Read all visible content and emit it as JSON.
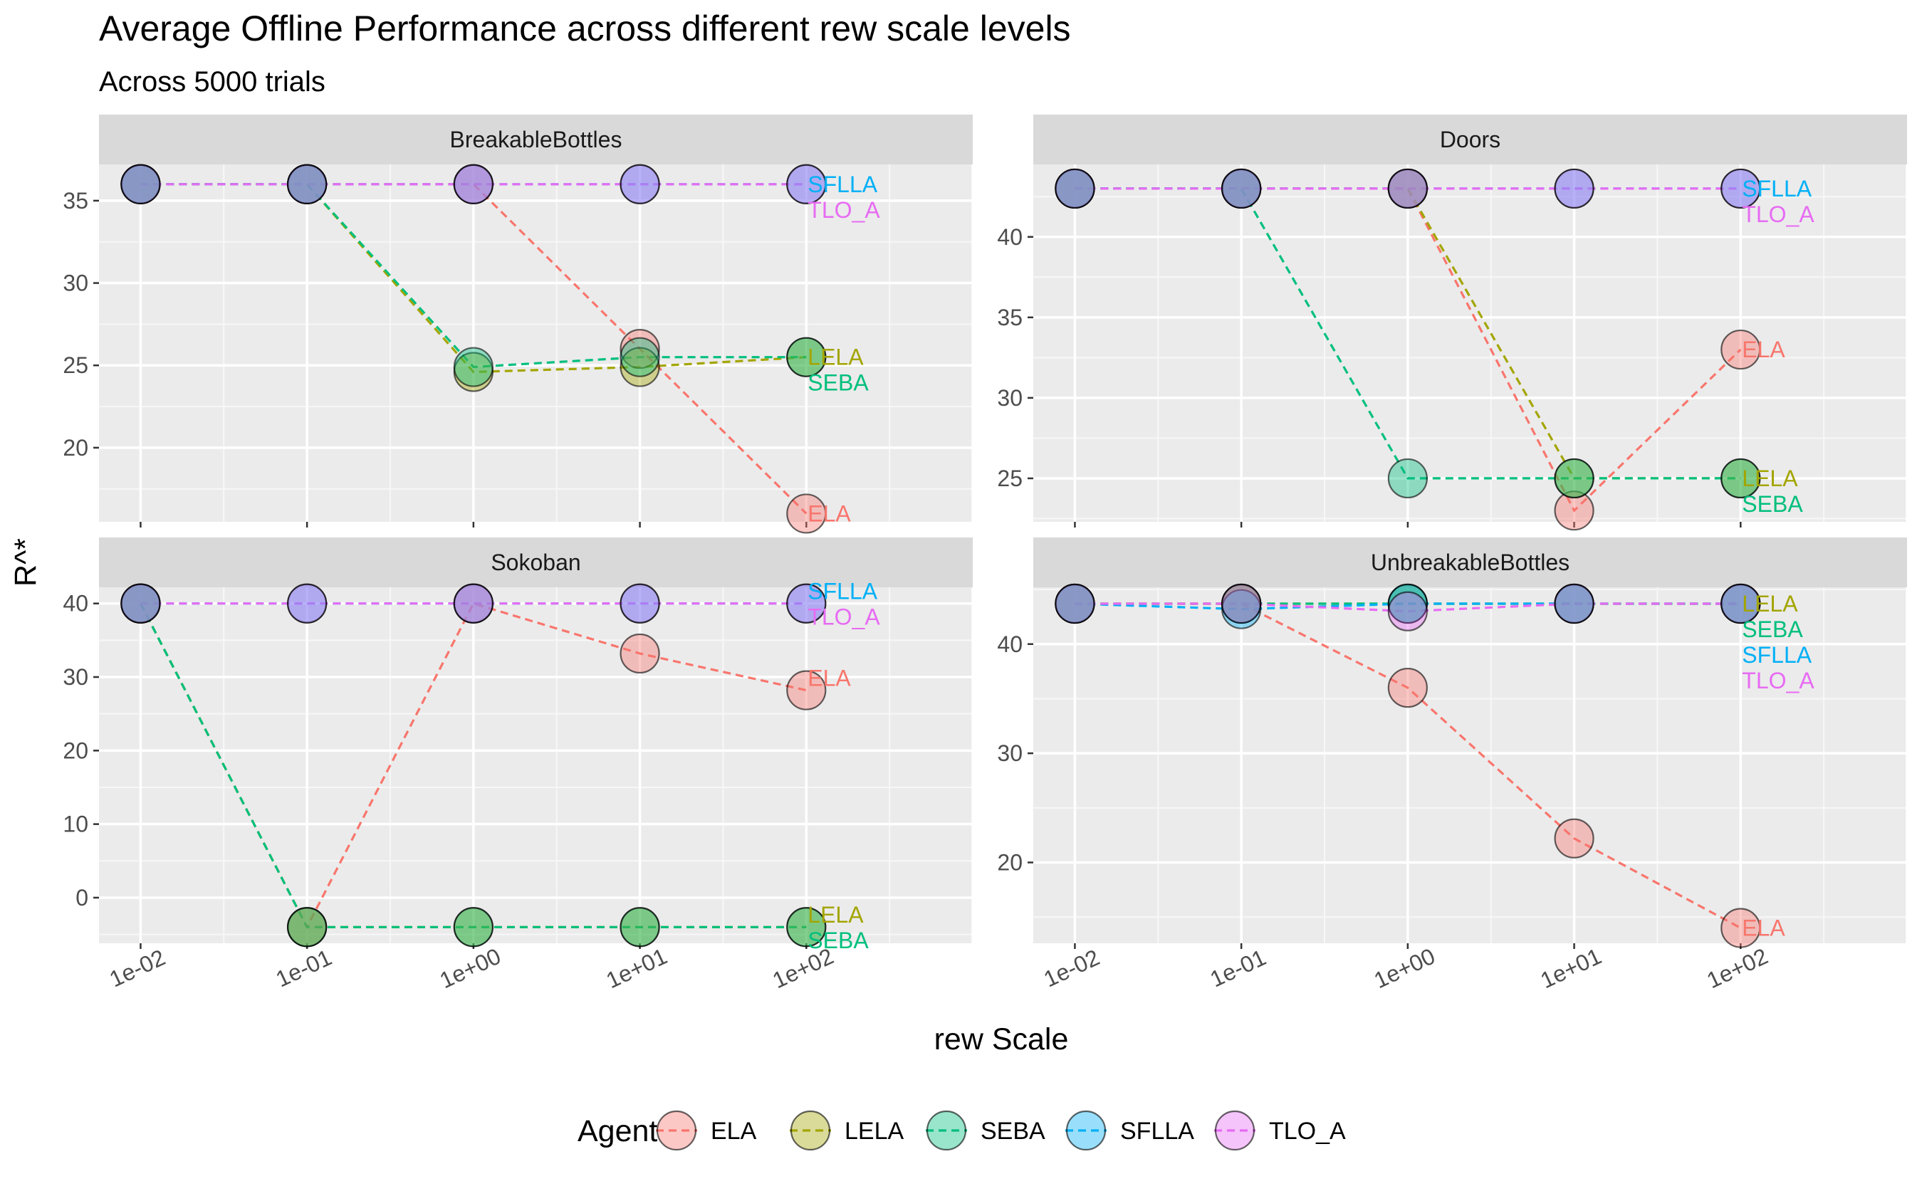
{
  "chart_data": {
    "type": "line",
    "title": "Average Offline Performance across different rew scale levels",
    "subtitle": "Across 5000 trials",
    "xlabel": "rew Scale",
    "ylabel": "R^*",
    "x_scale": "log10",
    "x_ticks": [
      "1e-02",
      "1e-01",
      "1e+00",
      "1e+01",
      "1e+02"
    ],
    "x": [
      0.01,
      0.1,
      1,
      10,
      100
    ],
    "grid": true,
    "legend": {
      "title": "Agent",
      "position": "bottom",
      "entries": [
        "ELA",
        "LELA",
        "SEBA",
        "SFLLA",
        "TLO_A"
      ]
    },
    "colors": {
      "ELA": "#F8766D",
      "LELA": "#A3A500",
      "SEBA": "#00BF7D",
      "SFLLA": "#00B0F6",
      "TLO_A": "#E76BF3"
    },
    "panels": [
      {
        "name": "BreakableBottles",
        "ylim": [
          15.5,
          37.2
        ],
        "y_ticks": [
          20,
          25,
          30,
          35
        ],
        "series": [
          {
            "name": "ELA",
            "values": [
              36,
              36,
              36,
              26,
              16
            ]
          },
          {
            "name": "LELA",
            "values": [
              36,
              36,
              24.6,
              24.9,
              25.5
            ]
          },
          {
            "name": "SEBA",
            "values": [
              36,
              36,
              24.9,
              25.5,
              25.5
            ]
          },
          {
            "name": "SFLLA",
            "values": [
              36,
              36,
              36,
              36,
              36
            ]
          },
          {
            "name": "TLO_A",
            "values": [
              36,
              36,
              36,
              36,
              36
            ]
          }
        ]
      },
      {
        "name": "Doors",
        "ylim": [
          22.3,
          44.5
        ],
        "y_ticks": [
          25,
          30,
          35,
          40
        ],
        "series": [
          {
            "name": "ELA",
            "values": [
              43,
              43,
              43,
              23,
              33
            ]
          },
          {
            "name": "LELA",
            "values": [
              43,
              43,
              43,
              25,
              25
            ]
          },
          {
            "name": "SEBA",
            "values": [
              43,
              43,
              25,
              25,
              25
            ]
          },
          {
            "name": "SFLLA",
            "values": [
              43,
              43,
              43,
              43,
              43
            ]
          },
          {
            "name": "TLO_A",
            "values": [
              43,
              43,
              43,
              43,
              43
            ]
          }
        ]
      },
      {
        "name": "Sokoban",
        "ylim": [
          -6.2,
          42.2
        ],
        "y_ticks": [
          0,
          10,
          20,
          30,
          40
        ],
        "series": [
          {
            "name": "ELA",
            "values": [
              40,
              -4,
              40,
              33.2,
              28.2
            ]
          },
          {
            "name": "LELA",
            "values": [
              40,
              -4,
              -4,
              -4,
              -4
            ]
          },
          {
            "name": "SEBA",
            "values": [
              40,
              -4,
              -4,
              -4,
              -4
            ]
          },
          {
            "name": "SFLLA",
            "values": [
              40,
              40,
              40,
              40,
              40
            ]
          },
          {
            "name": "TLO_A",
            "values": [
              40,
              40,
              40,
              40,
              40
            ]
          }
        ]
      },
      {
        "name": "UnbreakableBottles",
        "ylim": [
          12.6,
          45.2
        ],
        "y_ticks": [
          20,
          30,
          40
        ],
        "series": [
          {
            "name": "ELA",
            "values": [
              43.7,
              43.7,
              36,
              22.2,
              14
            ]
          },
          {
            "name": "LELA",
            "values": [
              43.7,
              43.7,
              43.7,
              43.7,
              43.7
            ]
          },
          {
            "name": "SEBA",
            "values": [
              43.7,
              43.7,
              43.7,
              43.7,
              43.7
            ]
          },
          {
            "name": "SFLLA",
            "values": [
              43.7,
              43.2,
              43.7,
              43.7,
              43.7
            ]
          },
          {
            "name": "TLO_A",
            "values": [
              43.7,
              43.7,
              43,
              43.7,
              43.7
            ]
          }
        ]
      }
    ]
  }
}
